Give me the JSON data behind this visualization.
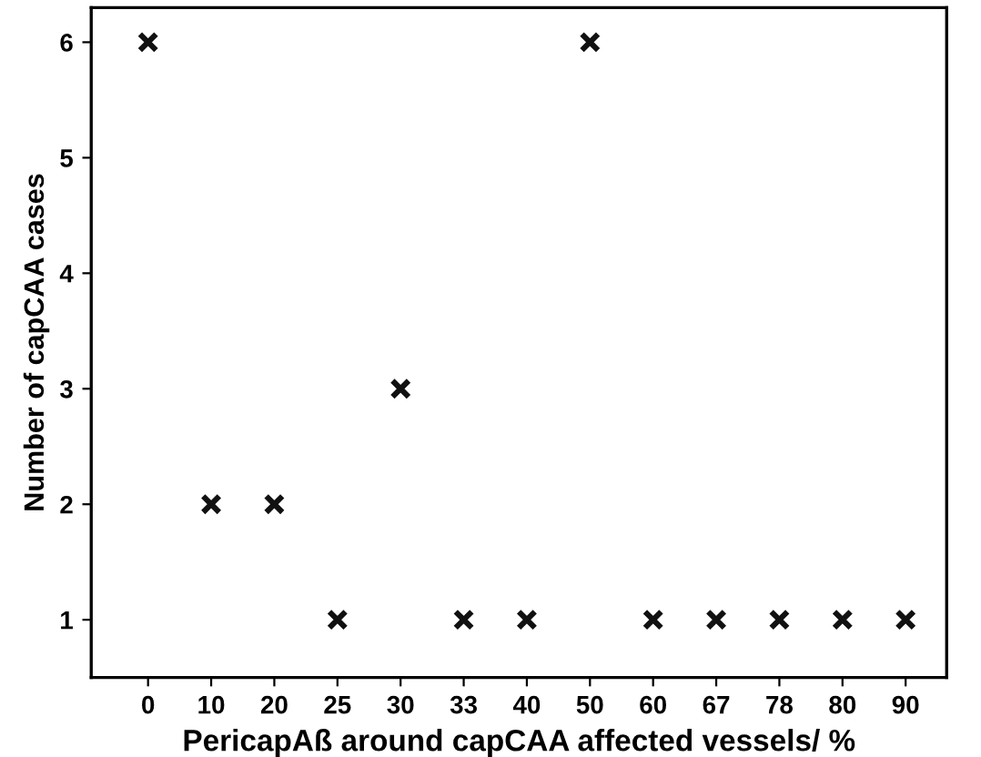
{
  "chart_data": {
    "type": "scatter",
    "xlabel": "PericapAß around capCAA affected vessels/ %",
    "ylabel": "Number of capCAA cases",
    "categories": [
      "0",
      "10",
      "20",
      "25",
      "30",
      "33",
      "40",
      "50",
      "60",
      "67",
      "78",
      "80",
      "90"
    ],
    "values": [
      6,
      2,
      2,
      1,
      3,
      1,
      1,
      6,
      1,
      1,
      1,
      1,
      1
    ],
    "color": "#111111",
    "marker": "cross",
    "ylim": [
      0.5,
      6.3
    ],
    "yticks": [
      1,
      2,
      3,
      4,
      5,
      6
    ],
    "grid": false,
    "legend": false
  }
}
